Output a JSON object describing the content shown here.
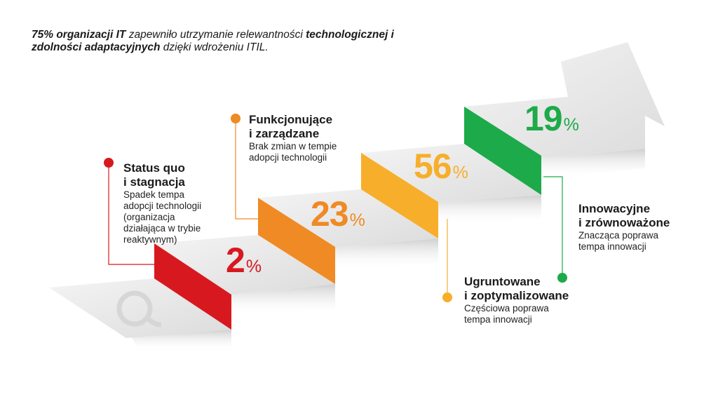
{
  "headline": {
    "bold1": "75% organizacji IT",
    "normal1": " zapewniło utrzymanie relewantności ",
    "bold2": "technologicznej i zdolności adaptacyjnych",
    "normal2": " dzięki wdrożeniu ITIL."
  },
  "steps": [
    {
      "value": "2",
      "unit": "%",
      "title1": "Status quo",
      "title2": "i stagnacja",
      "desc": [
        "Spadek tempa",
        "adopcji technologii",
        "(organizacja",
        "działająca w trybie",
        "reaktywnym)"
      ],
      "color": "#d7191f"
    },
    {
      "value": "23",
      "unit": "%",
      "title1": "Funkcjonujące",
      "title2": "i zarządzane",
      "desc": [
        "Brak zmian w tempie",
        "adopcji technologii"
      ],
      "color": "#f08a24"
    },
    {
      "value": "56",
      "unit": "%",
      "title1": "Ugruntowane",
      "title2": "i zoptymalizowane",
      "desc": [
        "Częściowa poprawa",
        "tempa innowacji"
      ],
      "color": "#f7ae2b"
    },
    {
      "value": "19",
      "unit": "%",
      "title1": "Innowacyjne",
      "title2": "i zrównoważone",
      "desc": [
        "Znacząca poprawa",
        "tempa innowacji"
      ],
      "color": "#1daa4a"
    }
  ]
}
